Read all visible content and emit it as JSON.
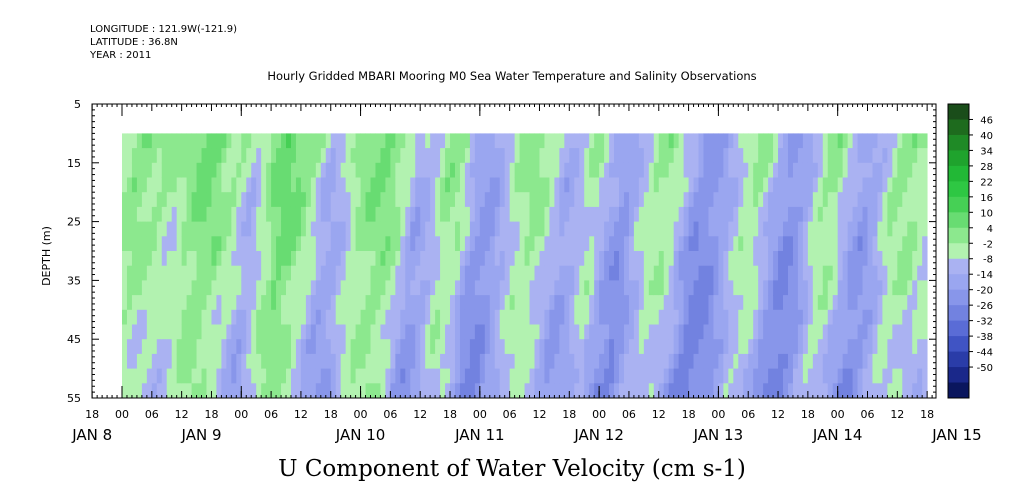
{
  "header": {
    "longitude": "LONGITUDE : 121.9W(-121.9)",
    "latitude": "LATITUDE : 36.8N",
    "year": "YEAR : 2011"
  },
  "chart_data": {
    "type": "heatmap",
    "title": "Hourly Gridded MBARI Mooring M0 Sea Water Temperature and Salinity Observations",
    "xlabel": "U Component of Water Velocity (cm s-1)",
    "ylabel": "DEPTH (m)",
    "ylim": [
      55,
      5
    ],
    "y_ticks": [
      5,
      15,
      25,
      35,
      45,
      55
    ],
    "y_tick_labels": [
      "5",
      "15",
      "25",
      "35",
      "45",
      "55"
    ],
    "data_depth_range": [
      10,
      55
    ],
    "x_start_hours": 0,
    "x_end_hours": 162,
    "x_axis_start_hours": -6,
    "x_hour_ticks": [
      -6,
      0,
      6,
      12,
      18,
      24,
      30,
      36,
      42,
      48,
      54,
      60,
      66,
      72,
      78,
      84,
      90,
      96,
      102,
      108,
      114,
      120,
      126,
      132,
      138,
      144,
      150,
      156,
      162
    ],
    "x_hour_labels": [
      "18",
      "00",
      "06",
      "12",
      "18",
      "00",
      "06",
      "12",
      "18",
      "00",
      "06",
      "12",
      "18",
      "00",
      "06",
      "12",
      "18",
      "00",
      "06",
      "12",
      "18",
      "00",
      "06",
      "12",
      "18",
      "00",
      "06",
      "12",
      "18"
    ],
    "x_day_ticks": [
      0,
      24,
      48,
      72,
      96,
      120,
      144
    ],
    "x_day_labels": [
      [
        "JAN",
        "8"
      ],
      [
        "JAN",
        "9"
      ],
      [
        "JAN",
        "10"
      ],
      [
        "JAN",
        "11"
      ],
      [
        "JAN",
        "12"
      ],
      [
        "JAN",
        "13"
      ],
      [
        "JAN",
        "14"
      ],
      [
        "JAN",
        "15"
      ]
    ],
    "x_day_label_positions": [
      -6,
      16,
      48,
      72,
      96,
      120,
      144,
      168
    ],
    "colorbar": {
      "labels": [
        "46",
        "40",
        "34",
        "28",
        "22",
        "16",
        "10",
        "4",
        "-2",
        "-8",
        "-14",
        "-20",
        "-26",
        "-32",
        "-38",
        "-44",
        "-50"
      ],
      "levels": [
        52,
        46,
        40,
        34,
        28,
        22,
        16,
        10,
        4,
        -2,
        -8,
        -14,
        -20,
        -26,
        -32,
        -38,
        -44,
        -50
      ],
      "colors": [
        "#1a4d1a",
        "#1e6b1e",
        "#1f8a26",
        "#1fa32d",
        "#22b836",
        "#2ec743",
        "#46d055",
        "#68dc72",
        "#8ce88e",
        "#b2f2b0",
        "#aab2f2",
        "#9aa6f0",
        "#8896ea",
        "#7282e0",
        "#5a6cd6",
        "#4054c4",
        "#2a3ca8",
        "#1a288a",
        "#0a165e"
      ]
    },
    "time_profile": [
      {
        "h": 0,
        "v": 2
      },
      {
        "h": 3,
        "v": 10
      },
      {
        "h": 6,
        "v": 8
      },
      {
        "h": 9,
        "v": 6
      },
      {
        "h": 12,
        "v": 4
      },
      {
        "h": 15,
        "v": 10
      },
      {
        "h": 18,
        "v": 14
      },
      {
        "h": 21,
        "v": 9
      },
      {
        "h": 24,
        "v": 4
      },
      {
        "h": 27,
        "v": -4
      },
      {
        "h": 30,
        "v": 6
      },
      {
        "h": 33,
        "v": 15
      },
      {
        "h": 36,
        "v": 12
      },
      {
        "h": 39,
        "v": 6
      },
      {
        "h": 42,
        "v": -6
      },
      {
        "h": 45,
        "v": -4
      },
      {
        "h": 48,
        "v": 6
      },
      {
        "h": 51,
        "v": 10
      },
      {
        "h": 54,
        "v": 12
      },
      {
        "h": 57,
        "v": 6
      },
      {
        "h": 60,
        "v": -8
      },
      {
        "h": 63,
        "v": -4
      },
      {
        "h": 66,
        "v": 8
      },
      {
        "h": 69,
        "v": 6
      },
      {
        "h": 72,
        "v": -10
      },
      {
        "h": 75,
        "v": -12
      },
      {
        "h": 78,
        "v": -4
      },
      {
        "h": 81,
        "v": 6
      },
      {
        "h": 84,
        "v": 8
      },
      {
        "h": 87,
        "v": 2
      },
      {
        "h": 90,
        "v": -8
      },
      {
        "h": 93,
        "v": -2
      },
      {
        "h": 96,
        "v": 6
      },
      {
        "h": 99,
        "v": -8
      },
      {
        "h": 102,
        "v": -14
      },
      {
        "h": 105,
        "v": -2
      },
      {
        "h": 108,
        "v": 6
      },
      {
        "h": 111,
        "v": 6
      },
      {
        "h": 114,
        "v": -4
      },
      {
        "h": 117,
        "v": -16
      },
      {
        "h": 120,
        "v": -14
      },
      {
        "h": 123,
        "v": -6
      },
      {
        "h": 126,
        "v": 4
      },
      {
        "h": 129,
        "v": 6
      },
      {
        "h": 132,
        "v": -6
      },
      {
        "h": 135,
        "v": -16
      },
      {
        "h": 138,
        "v": -10
      },
      {
        "h": 141,
        "v": 4
      },
      {
        "h": 144,
        "v": 8
      },
      {
        "h": 147,
        "v": -4
      },
      {
        "h": 150,
        "v": -12
      },
      {
        "h": 153,
        "v": -6
      },
      {
        "h": 156,
        "v": 6
      },
      {
        "h": 159,
        "v": 8
      },
      {
        "h": 162,
        "v": 4
      }
    ]
  }
}
